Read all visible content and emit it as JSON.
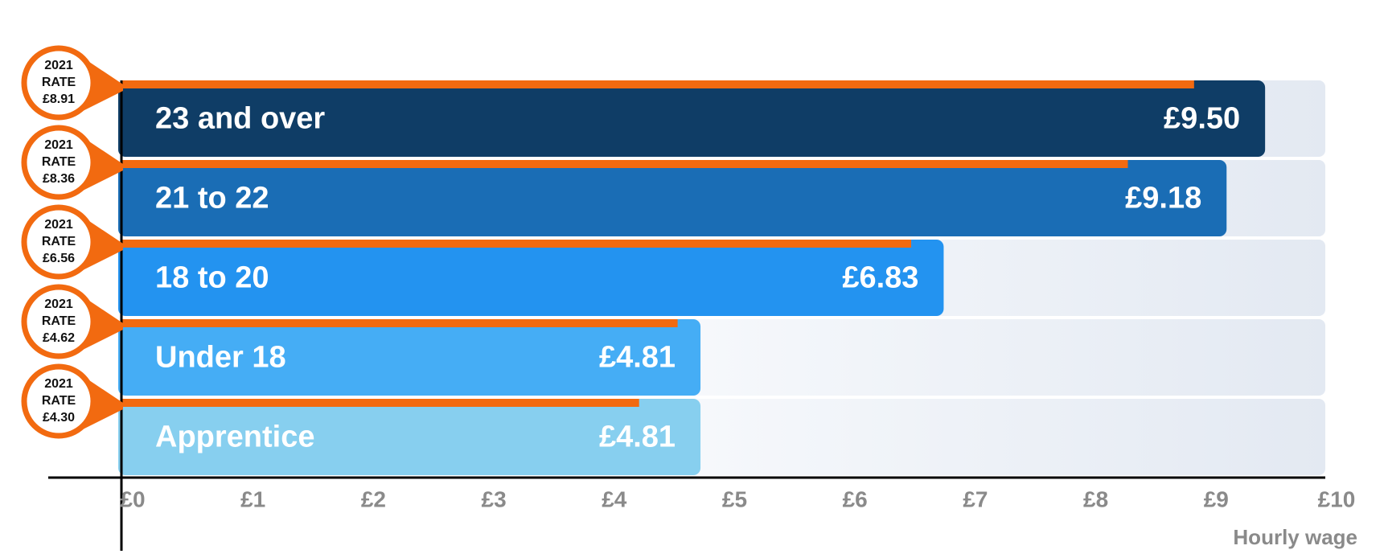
{
  "chart_data": {
    "type": "bar",
    "orientation": "horizontal",
    "categories": [
      "23 and over",
      "21 to 22",
      "18 to 20",
      "Under 18",
      "Apprentice"
    ],
    "series": [
      {
        "values": [
          9.5,
          9.18,
          6.83,
          4.81,
          4.81
        ],
        "value_labels": [
          "£9.50",
          "£9.18",
          "£6.83",
          "£4.81",
          "£4.81"
        ],
        "colors": [
          "#0f3d66",
          "#1a6db5",
          "#2393f0",
          "#45adf5",
          "#87cfef"
        ]
      },
      {
        "bubble_text": [
          "2021",
          "RATE"
        ],
        "values": [
          8.91,
          8.36,
          6.56,
          4.62,
          4.3
        ],
        "value_labels": [
          "£8.91",
          "£8.36",
          "£6.56",
          "£4.62",
          "£4.30"
        ],
        "color": "#f26a10"
      }
    ],
    "xlim": [
      0,
      10
    ],
    "xticks": [
      {
        "value": 0,
        "label": "£0"
      },
      {
        "value": 1,
        "label": "£1"
      },
      {
        "value": 2,
        "label": "£2"
      },
      {
        "value": 3,
        "label": "£3"
      },
      {
        "value": 4,
        "label": "£4"
      },
      {
        "value": 5,
        "label": "£5"
      },
      {
        "value": 6,
        "label": "£6"
      },
      {
        "value": 7,
        "label": "£7"
      },
      {
        "value": 8,
        "label": "£8"
      },
      {
        "value": 9,
        "label": "£9"
      },
      {
        "value": 10,
        "label": "£10"
      }
    ],
    "x_label": "Hourly wage",
    "grid": false
  }
}
